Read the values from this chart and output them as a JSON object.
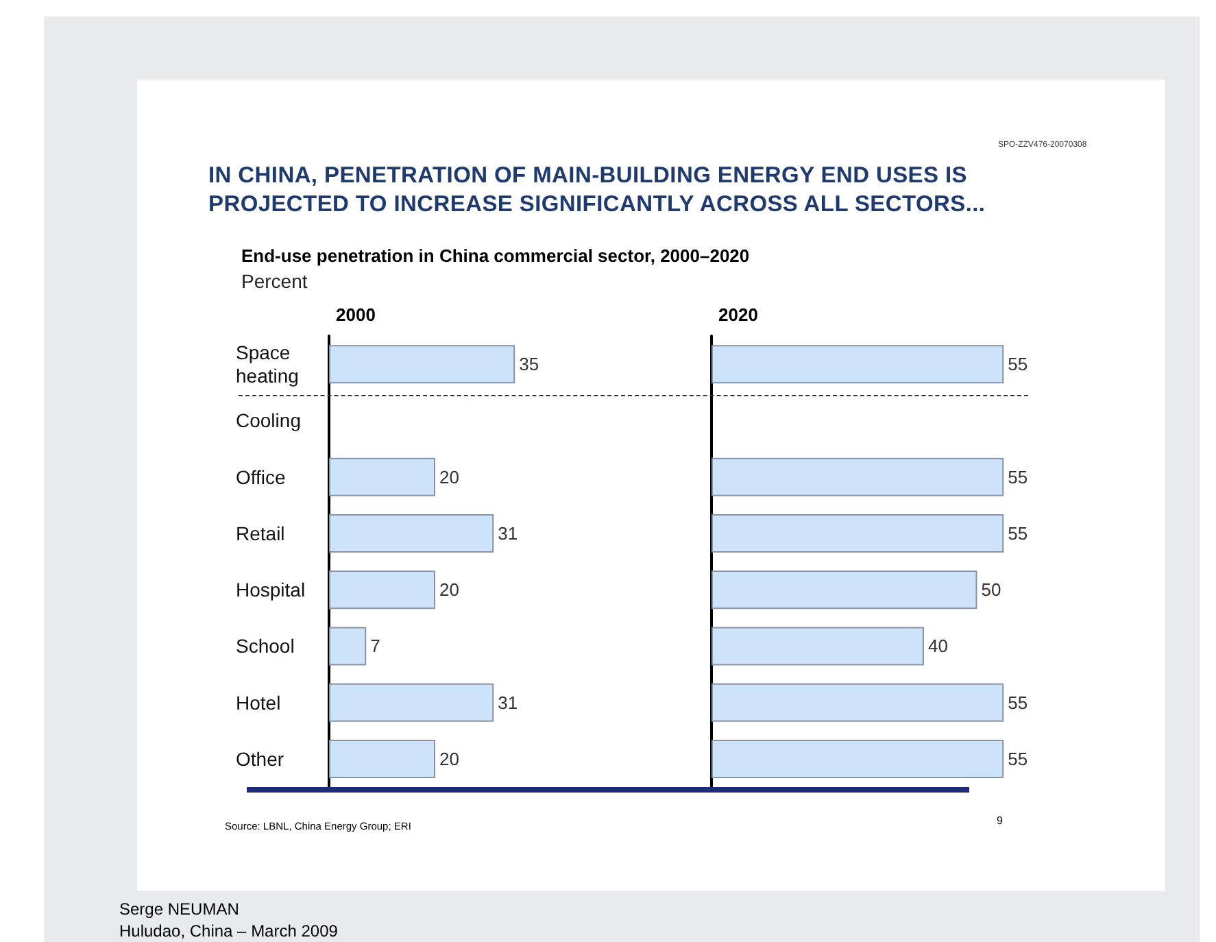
{
  "chart_data": [
    {
      "type": "bar",
      "orientation": "horizontal",
      "title": "2000",
      "categories": [
        "Space heating",
        "Cooling",
        "Office",
        "Retail",
        "Hospital",
        "School",
        "Hotel",
        "Other"
      ],
      "values": [
        35,
        null,
        20,
        31,
        20,
        7,
        31,
        20
      ],
      "color": "#cce3fa",
      "data_labels": true,
      "tick_labels": "y",
      "annotations": [
        "SPO-ZZV476-20070308",
        "IN CHINA, PENETRATION OF MAIN-BUILDING ENERGY END USES IS PROJECTED TO INCREASE SIGNIFICANTLY ACROSS ALL SECTORS...",
        "End-use penetration in China commercial sector, 2000–2020",
        "Percent",
        "Source: LBNL, China Energy Group; ERI",
        "9",
        "Serge NEUMAN",
        "Huludao, China – March 2009"
      ]
    },
    {
      "type": "bar",
      "orientation": "horizontal",
      "title": "2020",
      "categories": [
        "Space heating",
        "Cooling",
        "Office",
        "Retail",
        "Hospital",
        "School",
        "Hotel",
        "Other"
      ],
      "values": [
        55,
        null,
        55,
        55,
        50,
        40,
        55,
        55
      ],
      "color": "#cce3fa",
      "data_labels": true,
      "tick_labels": false
    }
  ]
}
